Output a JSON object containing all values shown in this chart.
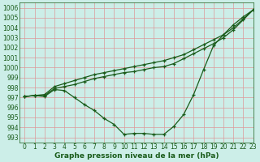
{
  "title": "Graphe pression niveau de la mer (hPa)",
  "background_color": "#cceee8",
  "grid_color": "#dd9999",
  "line_color": "#1a5c1a",
  "xlim": [
    -0.5,
    23
  ],
  "ylim": [
    992.5,
    1006.5
  ],
  "yticks": [
    993,
    994,
    995,
    996,
    997,
    998,
    999,
    1000,
    1001,
    1002,
    1003,
    1004,
    1005,
    1006
  ],
  "xticks": [
    0,
    1,
    2,
    3,
    4,
    5,
    6,
    7,
    8,
    9,
    10,
    11,
    12,
    13,
    14,
    15,
    16,
    17,
    18,
    19,
    20,
    21,
    22,
    23
  ],
  "series": [
    [
      997.1,
      997.2,
      997.1,
      997.8,
      997.7,
      997.0,
      996.3,
      995.7,
      994.9,
      994.3,
      993.3,
      993.4,
      993.4,
      993.3,
      993.3,
      994.1,
      995.3,
      997.3,
      999.8,
      1002.2,
      1003.3,
      1004.3,
      1005.1,
      1005.8
    ],
    [
      997.1,
      997.2,
      997.2,
      997.9,
      998.1,
      998.3,
      998.6,
      998.9,
      999.1,
      999.3,
      999.5,
      999.6,
      999.8,
      1000.0,
      1000.1,
      1000.4,
      1000.9,
      1001.4,
      1001.9,
      1002.4,
      1003.0,
      1003.8,
      1004.8,
      1005.8
    ],
    [
      997.1,
      997.2,
      997.3,
      998.1,
      998.4,
      998.7,
      999.0,
      999.3,
      999.5,
      999.7,
      999.9,
      1000.1,
      1000.3,
      1000.5,
      1000.7,
      1001.0,
      1001.3,
      1001.8,
      1002.3,
      1002.8,
      1003.3,
      1004.0,
      1004.9,
      1005.8
    ]
  ],
  "figsize": [
    3.2,
    2.0
  ],
  "dpi": 100,
  "tick_fontsize": 5.5,
  "xlabel_fontsize": 6.5,
  "linewidth": 0.9,
  "markersize": 3.0
}
